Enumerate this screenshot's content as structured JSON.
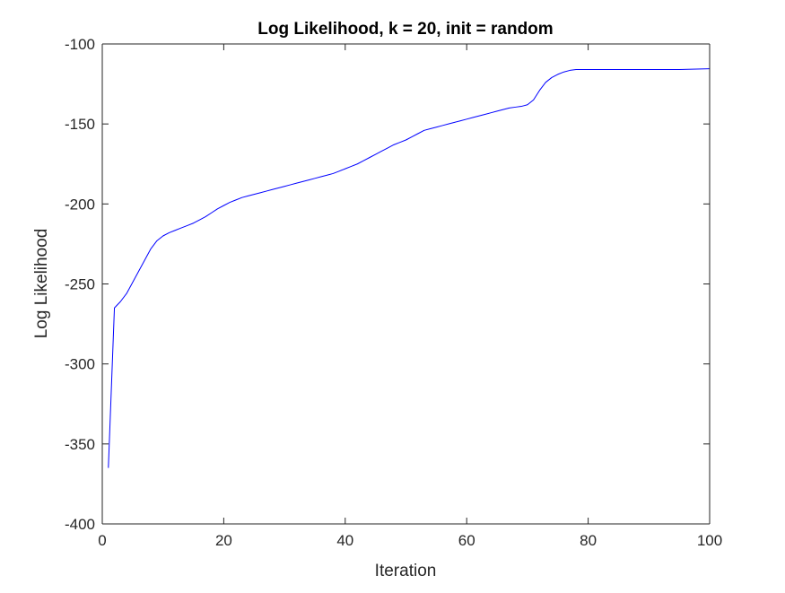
{
  "chart_data": {
    "type": "line",
    "title": "Log Likelihood, k = 20, init = random",
    "xlabel": "Iteration",
    "ylabel": "Log Likelihood",
    "xlim": [
      0,
      100
    ],
    "ylim": [
      -400,
      -100
    ],
    "xticks": [
      0,
      20,
      40,
      60,
      80,
      100
    ],
    "yticks": [
      -400,
      -350,
      -300,
      -250,
      -200,
      -150,
      -100
    ],
    "xtick_labels": [
      "0",
      "20",
      "40",
      "60",
      "80",
      "100"
    ],
    "ytick_labels": [
      "-400",
      "-350",
      "-300",
      "-250",
      "-200",
      "-150",
      "-100"
    ],
    "grid": false,
    "box": true,
    "series": [
      {
        "color": "#0000ff",
        "x": [
          1,
          2,
          3,
          4,
          5,
          6,
          7,
          8,
          9,
          10,
          11,
          12,
          13,
          14,
          15,
          16,
          17,
          18,
          19,
          20,
          21,
          22,
          23,
          24,
          25,
          26,
          27,
          28,
          29,
          30,
          31,
          32,
          33,
          34,
          35,
          36,
          37,
          38,
          39,
          40,
          41,
          42,
          43,
          44,
          45,
          46,
          47,
          48,
          49,
          50,
          51,
          52,
          53,
          54,
          55,
          56,
          57,
          58,
          59,
          60,
          61,
          62,
          63,
          64,
          65,
          66,
          67,
          68,
          69,
          70,
          71,
          72,
          73,
          74,
          75,
          76,
          77,
          78,
          79,
          80,
          85,
          90,
          95,
          100
        ],
        "y": [
          -365,
          -265,
          -261,
          -256,
          -249,
          -242,
          -235,
          -228,
          -223,
          -220,
          -218,
          -216.5,
          -215,
          -213.5,
          -212,
          -210,
          -208,
          -205.5,
          -203,
          -201,
          -199,
          -197.5,
          -196,
          -195,
          -194,
          -193,
          -192,
          -191,
          -190,
          -189,
          -188,
          -187,
          -186,
          -185,
          -184,
          -183,
          -182,
          -181,
          -179.5,
          -178,
          -176.5,
          -175,
          -173,
          -171,
          -169,
          -167,
          -165,
          -163,
          -161.5,
          -160,
          -158,
          -156,
          -154,
          -153,
          -152,
          -151,
          -150,
          -149,
          -148,
          -147,
          -146,
          -145,
          -144,
          -143,
          -142,
          -141,
          -140,
          -139.5,
          -139,
          -138,
          -135,
          -129,
          -124,
          -121,
          -119,
          -117.5,
          -116.5,
          -116,
          -116,
          -116,
          -116,
          -116,
          -116,
          -115.5
        ]
      }
    ]
  }
}
